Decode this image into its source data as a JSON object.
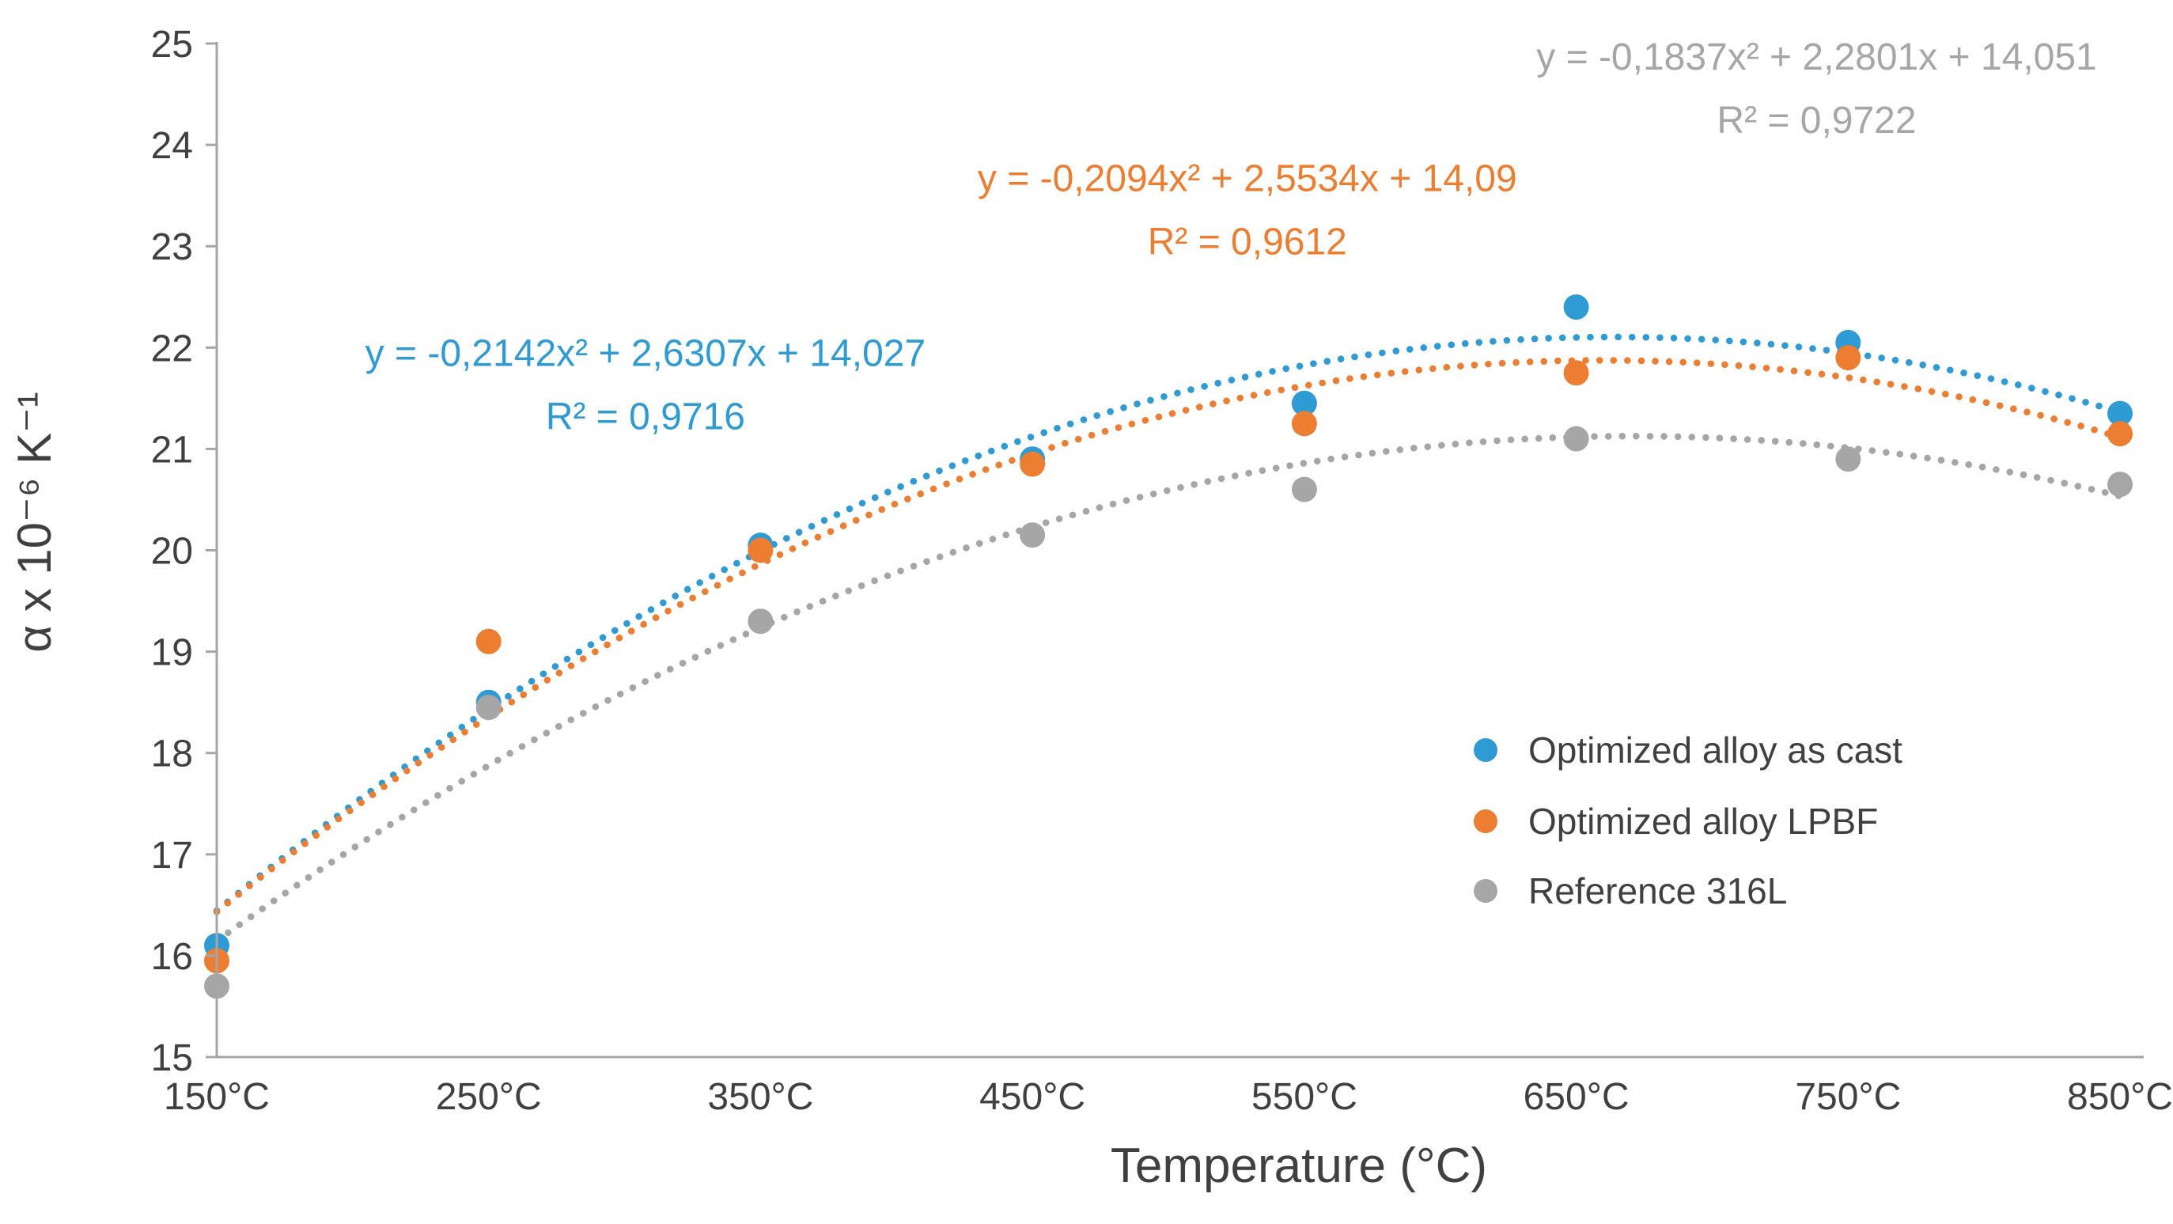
{
  "colors": {
    "background": "#FFFFFF",
    "axis_line": "#A6A6A6",
    "text": "#404040",
    "series_blue": "#2E9BD5",
    "series_orange": "#ED7D31",
    "series_gray": "#A6A6A6"
  },
  "chart_data": {
    "type": "scatter",
    "title": "",
    "xlabel": "Temperature (°C)",
    "ylabel": "α x 10⁻⁶ K⁻¹",
    "ylim": [
      15,
      25
    ],
    "y_ticks": [
      15,
      16,
      17,
      18,
      19,
      20,
      21,
      22,
      23,
      24,
      25
    ],
    "x_values": [
      150,
      250,
      350,
      450,
      550,
      650,
      750,
      850
    ],
    "x_tick_labels": [
      "150°C",
      "250°C",
      "350°C",
      "450°C",
      "550°C",
      "650°C",
      "750°C",
      "850°C"
    ],
    "grid": false,
    "legend_position": "inside-right",
    "series": [
      {
        "name": "Optimized alloy as cast",
        "color": "#2E9BD5",
        "values": [
          16.1,
          18.5,
          20.05,
          20.9,
          21.45,
          22.4,
          22.05,
          21.35
        ],
        "trendline": {
          "type": "polynomial",
          "order": 2,
          "a": -0.2142,
          "b": 2.6307,
          "c": 14.027
        },
        "equation": "y = -0,2142x² + 2,6307x + 14,027",
        "r_squared": "R² = 0,9716",
        "label_pos": {
          "x": 0.297,
          "y": 0.299
        }
      },
      {
        "name": "Optimized alloy LPBF",
        "color": "#ED7D31",
        "values": [
          15.95,
          19.1,
          20.0,
          20.85,
          21.25,
          21.75,
          21.9,
          21.15
        ],
        "trendline": {
          "type": "polynomial",
          "order": 2,
          "a": -0.2094,
          "b": 2.5534,
          "c": 14.09
        },
        "equation": "y = -0,2094x² + 2,5534x + 14,09",
        "r_squared": "R² = 0,9612",
        "label_pos": {
          "x": 0.574,
          "y": 0.156
        }
      },
      {
        "name": "Reference 316L",
        "color": "#A6A6A6",
        "values": [
          15.7,
          18.45,
          19.3,
          20.15,
          20.6,
          21.1,
          20.9,
          20.65
        ],
        "trendline": {
          "type": "polynomial",
          "order": 2,
          "a": -0.1837,
          "b": 2.2801,
          "c": 14.051
        },
        "equation": "y = -0,1837x² + 2,2801x + 14,051",
        "r_squared": "R² = 0,9722",
        "label_pos": {
          "x": 0.836,
          "y": 0.057
        }
      }
    ]
  }
}
